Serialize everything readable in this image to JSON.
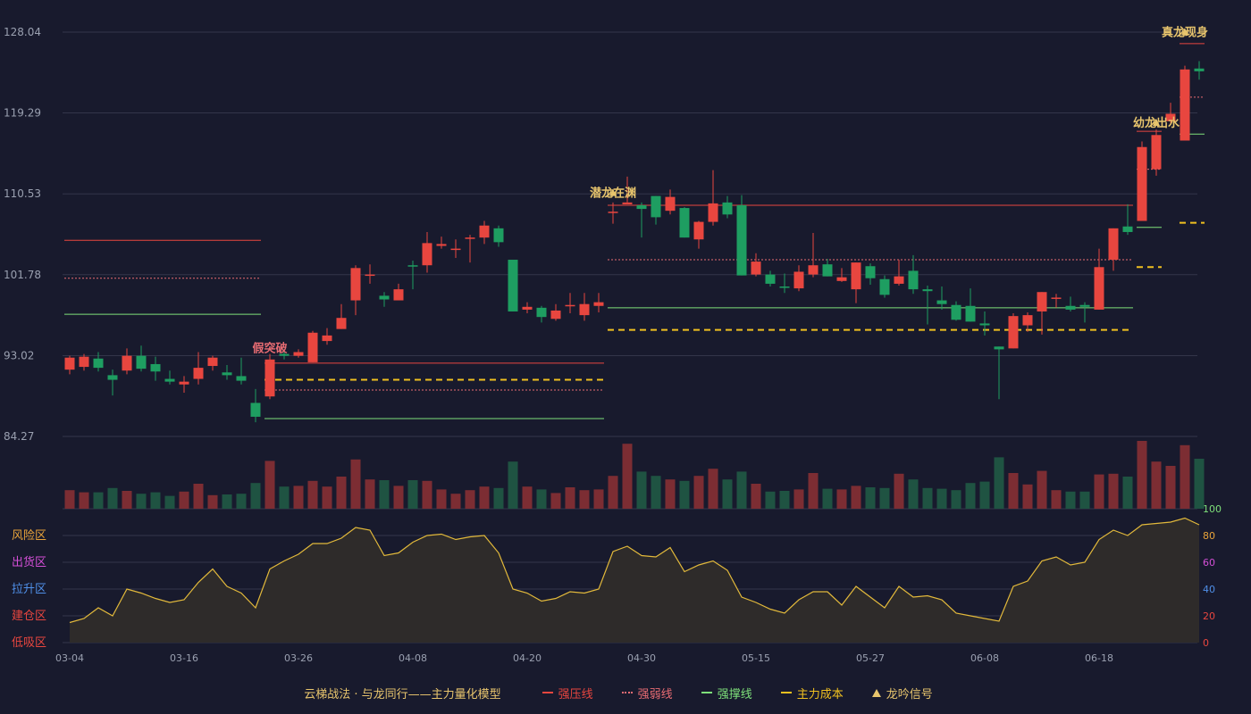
{
  "colors": {
    "background": "#181a2d",
    "grid": "#33354a",
    "up": "#e8463f",
    "down": "#1e9e61",
    "up_volume": "#7c2d33",
    "down_volume": "#1f5342",
    "strong_pressure": "#e8463f",
    "strong_weak": "#e86c73",
    "strong_support": "#7ee07a",
    "main_cost": "#f0c020",
    "signal": "#e8c56d",
    "risk_line": "#e2b93b"
  },
  "chart_data": {
    "type": "candlestick",
    "title": "",
    "price_axis": {
      "ticks": [
        "128.04",
        "119.29",
        "110.53",
        "101.78",
        "93.02",
        "84.27"
      ],
      "min": 84.27,
      "max": 128.04
    },
    "indicator_axis": {
      "ticks": [
        "100",
        "80",
        "60",
        "40",
        "20",
        "0"
      ],
      "min": 0,
      "max": 100
    },
    "zones": [
      "风险区",
      "出货区",
      "拉升区",
      "建仓区",
      "低吸区"
    ],
    "x_ticks": [
      {
        "i": 0,
        "label": "03-04"
      },
      {
        "i": 8,
        "label": "03-16"
      },
      {
        "i": 16,
        "label": "03-26"
      },
      {
        "i": 24,
        "label": "04-08"
      },
      {
        "i": 32,
        "label": "04-20"
      },
      {
        "i": 40,
        "label": "04-30"
      },
      {
        "i": 48,
        "label": "05-15"
      },
      {
        "i": 56,
        "label": "05-27"
      },
      {
        "i": 64,
        "label": "06-08"
      },
      {
        "i": 72,
        "label": "06-18"
      }
    ],
    "candles": [
      [
        91.5,
        92.8,
        93.0,
        91.0
      ],
      [
        91.8,
        92.9,
        93.2,
        91.4
      ],
      [
        92.7,
        91.7,
        93.4,
        91.3
      ],
      [
        90.9,
        90.4,
        91.5,
        88.7
      ],
      [
        91.4,
        93.0,
        93.8,
        91.0
      ],
      [
        93.0,
        91.6,
        94.1,
        91.3
      ],
      [
        92.1,
        91.3,
        92.9,
        90.3
      ],
      [
        90.5,
        90.2,
        91.4,
        89.9
      ],
      [
        89.9,
        90.2,
        90.8,
        89.0
      ],
      [
        90.5,
        91.7,
        93.4,
        89.9
      ],
      [
        91.9,
        92.8,
        93.0,
        91.4
      ],
      [
        91.2,
        90.9,
        92.0,
        90.4
      ],
      [
        90.8,
        90.3,
        92.8,
        89.9
      ],
      [
        87.9,
        86.4,
        89.4,
        85.8
      ],
      [
        88.6,
        92.6,
        93.2,
        88.3
      ],
      [
        93.2,
        93.0,
        93.7,
        92.6
      ],
      [
        93.0,
        93.4,
        93.7,
        92.8
      ],
      [
        92.3,
        95.5,
        95.7,
        92.3
      ],
      [
        94.6,
        95.2,
        96.0,
        94.2
      ],
      [
        95.9,
        97.1,
        98.6,
        95.9
      ],
      [
        99.0,
        102.5,
        102.8,
        97.4
      ],
      [
        101.8,
        101.8,
        102.9,
        100.8
      ],
      [
        99.5,
        99.1,
        99.9,
        98.3
      ],
      [
        99.0,
        100.2,
        100.8,
        99.0
      ],
      [
        102.8,
        102.7,
        103.3,
        100.2
      ],
      [
        102.8,
        105.2,
        106.4,
        102.0
      ],
      [
        104.9,
        105.1,
        105.9,
        104.6
      ],
      [
        104.6,
        104.6,
        105.6,
        103.6
      ],
      [
        105.8,
        105.8,
        106.1,
        103.1
      ],
      [
        105.8,
        107.1,
        107.6,
        105.1
      ],
      [
        106.8,
        105.3,
        107.1,
        104.8
      ],
      [
        103.4,
        97.8,
        103.4,
        97.8
      ],
      [
        98.0,
        98.3,
        98.8,
        97.6
      ],
      [
        98.2,
        97.2,
        98.4,
        96.6
      ],
      [
        97.0,
        97.9,
        98.6,
        96.8
      ],
      [
        98.4,
        98.5,
        99.8,
        97.6
      ],
      [
        97.4,
        98.6,
        99.8,
        96.8
      ],
      [
        98.4,
        98.8,
        99.8,
        97.7
      ],
      [
        108.6,
        108.6,
        109.6,
        107.3
      ],
      [
        109.4,
        109.6,
        112.4,
        109.6
      ],
      [
        109.3,
        108.9,
        109.6,
        105.8
      ],
      [
        110.3,
        108.0,
        110.3,
        107.2
      ],
      [
        108.7,
        110.2,
        111.0,
        108.3
      ],
      [
        109.0,
        105.8,
        109.1,
        105.8
      ],
      [
        105.6,
        107.5,
        107.6,
        104.6
      ],
      [
        107.5,
        109.5,
        113.1,
        107.1
      ],
      [
        109.6,
        108.3,
        110.3,
        107.9
      ],
      [
        109.3,
        101.7,
        110.4,
        101.7
      ],
      [
        101.8,
        103.2,
        104.1,
        101.6
      ],
      [
        101.8,
        100.8,
        102.2,
        100.5
      ],
      [
        100.5,
        100.4,
        101.9,
        99.8
      ],
      [
        100.3,
        102.1,
        102.8,
        100.0
      ],
      [
        101.8,
        102.8,
        106.3,
        101.5
      ],
      [
        102.9,
        101.6,
        103.5,
        101.6
      ],
      [
        101.1,
        101.5,
        102.5,
        101.0
      ],
      [
        100.2,
        103.1,
        103.1,
        98.7
      ],
      [
        102.7,
        101.4,
        103.0,
        100.7
      ],
      [
        101.3,
        99.6,
        101.7,
        99.3
      ],
      [
        100.8,
        101.6,
        103.4,
        100.6
      ],
      [
        102.2,
        100.2,
        103.9,
        99.7
      ],
      [
        100.2,
        100.0,
        100.6,
        96.4
      ],
      [
        99.0,
        98.6,
        100.5,
        98.0
      ],
      [
        98.5,
        96.9,
        98.9,
        96.8
      ],
      [
        98.4,
        96.7,
        100.3,
        96.7
      ],
      [
        96.5,
        96.3,
        97.8,
        95.2
      ],
      [
        94.0,
        93.7,
        94.0,
        88.3
      ],
      [
        93.8,
        97.3,
        97.6,
        93.8
      ],
      [
        96.3,
        97.4,
        97.7,
        95.6
      ],
      [
        97.8,
        99.9,
        99.9,
        95.3
      ],
      [
        99.2,
        99.3,
        99.7,
        98.2
      ],
      [
        98.4,
        98.0,
        99.4,
        97.8
      ],
      [
        98.5,
        98.3,
        98.8,
        96.6
      ],
      [
        98.0,
        102.6,
        104.6,
        98.0
      ],
      [
        103.4,
        106.8,
        106.8,
        102.2
      ],
      [
        107.0,
        106.4,
        109.4,
        106.1
      ],
      [
        107.6,
        115.6,
        116.2,
        107.6
      ],
      [
        113.2,
        116.9,
        117.5,
        112.5
      ],
      [
        118.4,
        119.2,
        120.4,
        118.2
      ],
      [
        116.3,
        124.0,
        124.4,
        116.3
      ],
      [
        124.1,
        123.8,
        124.9,
        122.9
      ]
    ],
    "volume": [
      0.26,
      0.23,
      0.23,
      0.29,
      0.25,
      0.21,
      0.23,
      0.18,
      0.24,
      0.35,
      0.19,
      0.2,
      0.21,
      0.36,
      0.67,
      0.31,
      0.32,
      0.39,
      0.31,
      0.45,
      0.69,
      0.41,
      0.4,
      0.32,
      0.4,
      0.39,
      0.27,
      0.21,
      0.26,
      0.31,
      0.29,
      0.66,
      0.31,
      0.27,
      0.22,
      0.3,
      0.26,
      0.27,
      0.46,
      0.91,
      0.52,
      0.46,
      0.41,
      0.39,
      0.46,
      0.56,
      0.41,
      0.52,
      0.35,
      0.24,
      0.25,
      0.27,
      0.5,
      0.28,
      0.27,
      0.32,
      0.3,
      0.29,
      0.49,
      0.41,
      0.29,
      0.28,
      0.26,
      0.36,
      0.38,
      0.72,
      0.5,
      0.34,
      0.53,
      0.26,
      0.24,
      0.24,
      0.48,
      0.49,
      0.45,
      0.95,
      0.66,
      0.6,
      0.89,
      0.7
    ],
    "indicator": [
      15,
      18,
      26,
      20,
      40,
      37,
      33,
      30,
      32,
      45,
      55,
      42,
      37,
      26,
      55,
      61,
      66,
      74,
      74,
      78,
      86,
      84,
      65,
      67,
      75,
      80,
      81,
      77,
      79,
      80,
      67,
      40,
      37,
      31,
      33,
      38,
      37,
      40,
      68,
      72,
      65,
      64,
      71,
      53,
      58,
      61,
      54,
      34,
      30,
      25,
      22,
      32,
      38,
      38,
      28,
      42,
      34,
      26,
      42,
      34,
      35,
      32,
      22,
      20,
      18,
      16,
      42,
      46,
      61,
      64,
      58,
      60,
      77,
      84,
      80,
      88,
      89,
      90,
      93,
      88
    ],
    "levels": [
      {
        "from": 0,
        "to": 13,
        "pressure": 105.5,
        "weak": 101.4,
        "cost": null,
        "support": 97.5
      },
      {
        "from": 14,
        "to": 37,
        "pressure": 92.2,
        "weak": 89.3,
        "cost": 90.4,
        "support": 86.2
      },
      {
        "from": 38,
        "to": 74,
        "pressure": 109.3,
        "weak": 103.4,
        "cost": 95.8,
        "support": 98.2
      },
      {
        "from": 75,
        "to": 76,
        "pressure": 117.3,
        "weak": 113.2,
        "cost": 102.6,
        "support": 106.9
      },
      {
        "from": 78,
        "to": 79,
        "pressure": 126.8,
        "weak": 121.0,
        "cost": 107.4,
        "support": 117.0
      }
    ],
    "signals": [
      {
        "i": 14,
        "label": "假突破",
        "at": 93.4,
        "color": "#e86c73",
        "marker": false
      },
      {
        "i": 38,
        "label": "潜龙在渊",
        "at": 110.2,
        "color": "#e8c56d",
        "marker": true
      },
      {
        "i": 76,
        "label": "幼龙出水",
        "at": 117.8,
        "color": "#e8c56d",
        "marker": true
      },
      {
        "i": 78,
        "label": "真龙现身",
        "at": 127.6,
        "color": "#e8c56d",
        "marker": true
      }
    ],
    "legend": {
      "title": "云梯战法 · 与龙同行——主力量化模型",
      "items": [
        "强压线",
        "强弱线",
        "强撑线",
        "主力成本",
        "龙吟信号"
      ]
    }
  }
}
